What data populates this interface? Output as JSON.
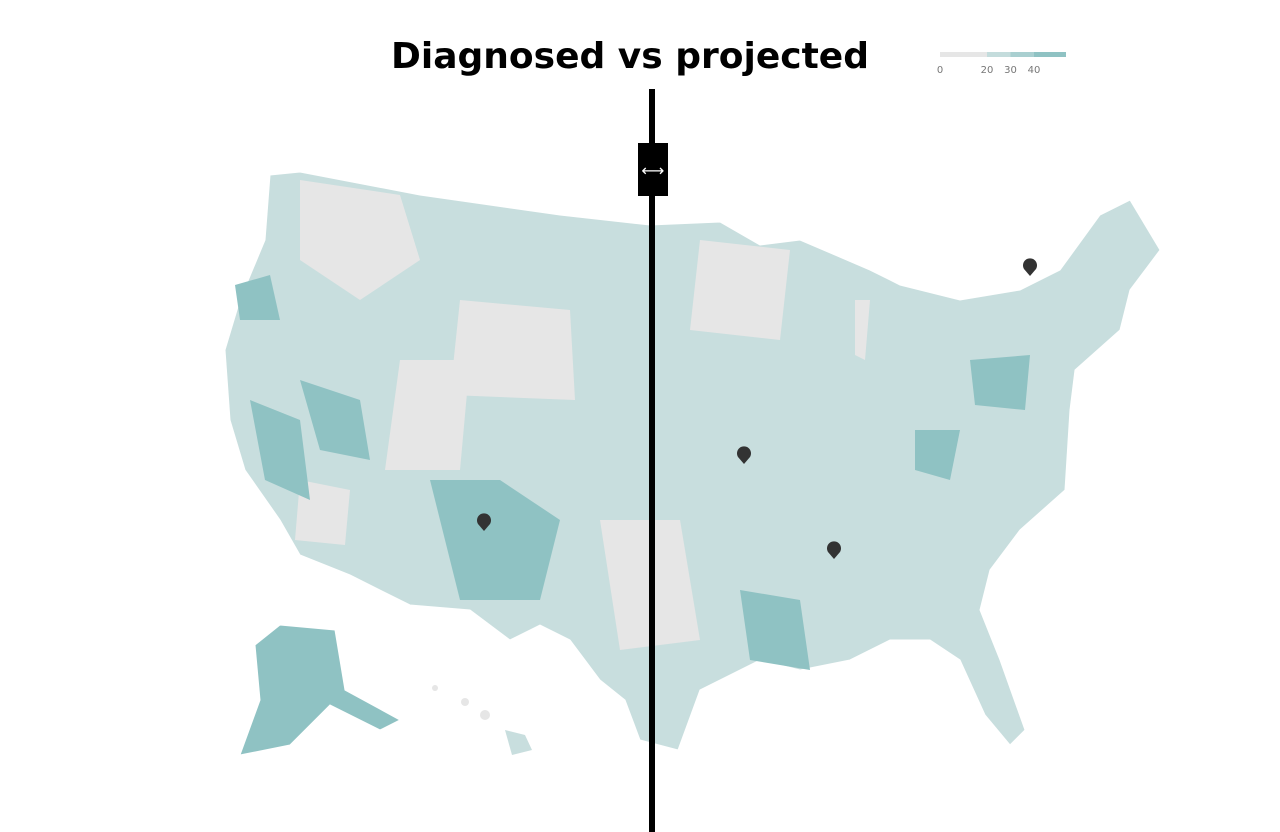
{
  "title": "Diagnosed vs projected",
  "legend": {
    "ticks": [
      0,
      20,
      30,
      40
    ],
    "colors": [
      "#e6e6e6",
      "#c4dcdc",
      "#a9cfd0",
      "#8fc2c3"
    ]
  }
}
